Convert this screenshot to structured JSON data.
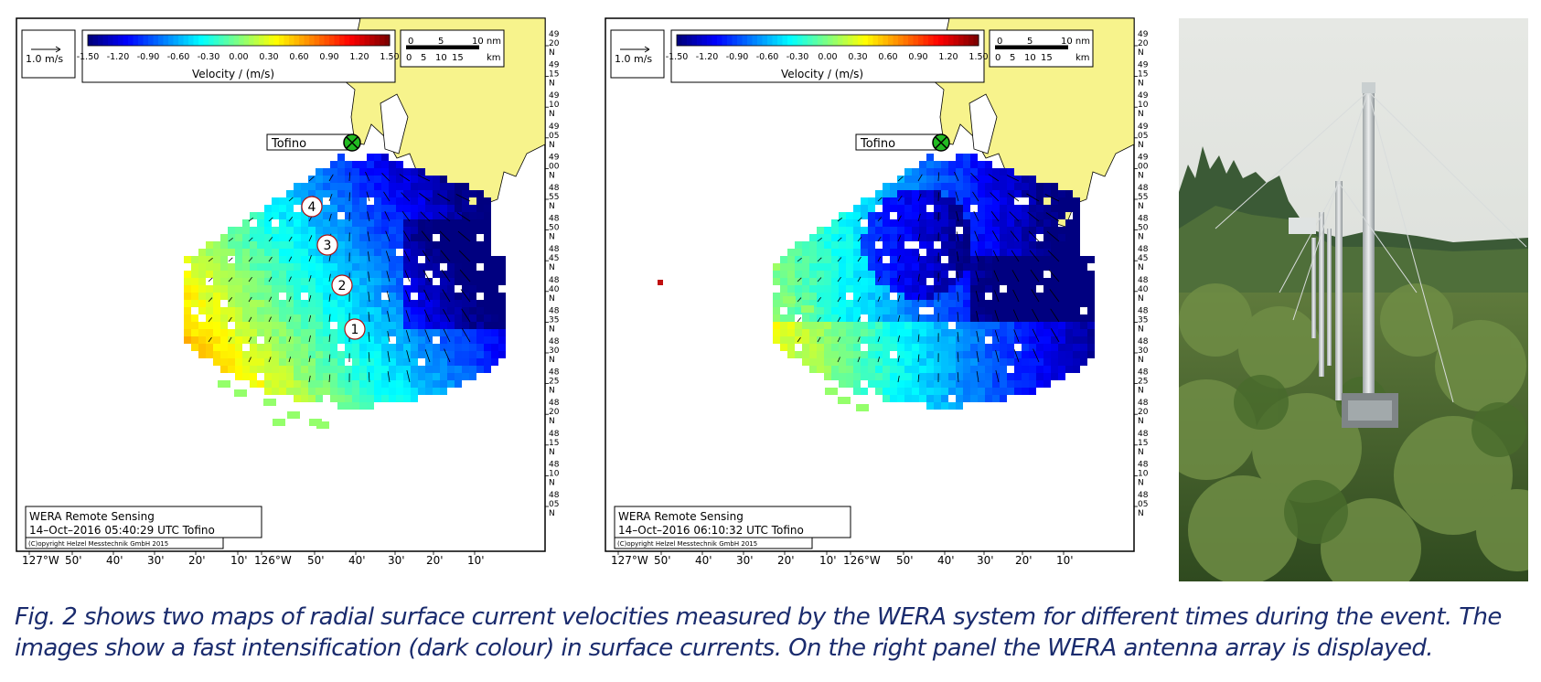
{
  "maps": [
    {
      "scale_arrow_label": "1.0 m/s",
      "colorbar_ticks": [
        "-1.50",
        "-1.20",
        "-0.90",
        "-0.60",
        "-0.30",
        "0.00",
        "0.30",
        "0.60",
        "0.90",
        "1.20",
        "1.50"
      ],
      "colorbar_title": "Velocity / (m/s)",
      "scalebar_nm": [
        "0",
        "5",
        "10 nm"
      ],
      "scalebar_km": [
        "0",
        "5",
        "10",
        "15",
        "km"
      ],
      "site_label": "Tofino",
      "footer_line1": "WERA Remote Sensing",
      "footer_line2": "14–Oct–2016 05:40:29 UTC  Tofino",
      "copyright": "(C)opyright Helzel Messtechnik GmbH 2015",
      "markers": [
        "4",
        "3",
        "2",
        "1"
      ],
      "lat_labels": [
        "49° 20' N",
        "49° 15' N",
        "49° 10' N",
        "49° 05' N",
        "49° 00' N",
        "48° 55' N",
        "48° 50' N",
        "48° 45' N",
        "48° 40' N",
        "48° 35' N",
        "48° 30' N",
        "48° 25' N",
        "48° 20' N",
        "48° 15' N",
        "48° 10' N",
        "48° 05' N"
      ],
      "lon_labels": [
        "127°W",
        "50'",
        "40'",
        "30'",
        "20'",
        "10'",
        "126°W",
        "50'",
        "40'",
        "30'",
        "20'",
        "10'"
      ]
    },
    {
      "scale_arrow_label": "1.0 m/s",
      "colorbar_ticks": [
        "-1.50",
        "-1.20",
        "-0.90",
        "-0.60",
        "-0.30",
        "0.00",
        "0.30",
        "0.60",
        "0.90",
        "1.20",
        "1.50"
      ],
      "colorbar_title": "Velocity / (m/s)",
      "scalebar_nm": [
        "0",
        "5",
        "10 nm"
      ],
      "scalebar_km": [
        "0",
        "5",
        "10",
        "15",
        "km"
      ],
      "site_label": "Tofino",
      "footer_line1": "WERA Remote Sensing",
      "footer_line2": "14–Oct–2016 06:10:32 UTC  Tofino",
      "copyright": "(C)opyright Helzel Messtechnik GmbH 2015",
      "markers": [],
      "lat_labels": [
        "49° 20' N",
        "49° 15' N",
        "49° 10' N",
        "49° 05' N",
        "49° 00' N",
        "48° 55' N",
        "48° 50' N",
        "48° 45' N",
        "48° 40' N",
        "48° 35' N",
        "48° 30' N",
        "48° 25' N",
        "48° 20' N",
        "48° 15' N",
        "48° 10' N",
        "48° 05' N"
      ],
      "lon_labels": [
        "127°W",
        "50'",
        "40'",
        "30'",
        "20'",
        "10'",
        "126°W",
        "50'",
        "40'",
        "30'",
        "20'",
        "10'"
      ]
    }
  ],
  "photo": {
    "subject": "WERA antenna array"
  },
  "caption": {
    "line1": "Fig. 2 shows two maps of radial surface current velocities measured by the WERA system for different times during the event. The",
    "line2": "images show a fast intensification (dark colour) in surface currents. On the right panel the WERA antenna array is displayed."
  },
  "colors": {
    "land": "#f7f38c",
    "caption_text": "#1a2b6d",
    "site_marker": "#22bb22"
  }
}
